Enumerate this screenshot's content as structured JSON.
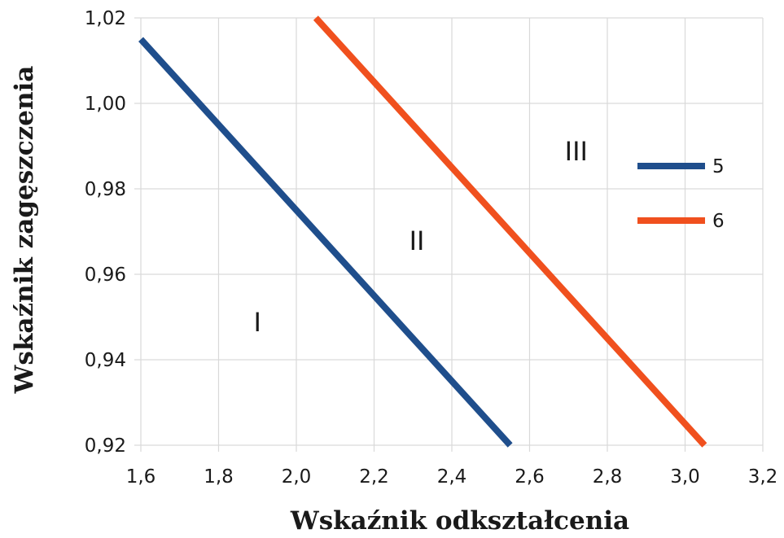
{
  "chart_data": {
    "type": "line",
    "xlabel": "Wskaźnik odkształcenia",
    "ylabel": "Wskaźnik zagęszczenia",
    "xlim": [
      1.6,
      3.2
    ],
    "ylim": [
      0.92,
      1.02
    ],
    "x_ticks": [
      "1,6",
      "1,8",
      "2,0",
      "2,2",
      "2,4",
      "2,6",
      "2,8",
      "3,0",
      "3,2"
    ],
    "y_ticks": [
      "0,92",
      "0,94",
      "0,96",
      "0,98",
      "1,00",
      "1,02"
    ],
    "x_tick_values": [
      1.6,
      1.8,
      2.0,
      2.2,
      2.4,
      2.6,
      2.8,
      3.0,
      3.2
    ],
    "y_tick_values": [
      0.92,
      0.94,
      0.96,
      0.98,
      1.0,
      1.02
    ],
    "grid": true,
    "legend_position": "right",
    "series": [
      {
        "name": "5",
        "color": "#1f4e8c",
        "points": [
          [
            1.6,
            1.015
          ],
          [
            2.55,
            0.92
          ]
        ]
      },
      {
        "name": "6",
        "color": "#f0501e",
        "points": [
          [
            2.05,
            1.02
          ],
          [
            3.05,
            0.92
          ]
        ]
      }
    ],
    "annotations": [
      {
        "text": "I",
        "x": 1.9,
        "y": 0.949
      },
      {
        "text": "II",
        "x": 2.31,
        "y": 0.968
      },
      {
        "text": "III",
        "x": 2.72,
        "y": 0.989
      }
    ]
  }
}
